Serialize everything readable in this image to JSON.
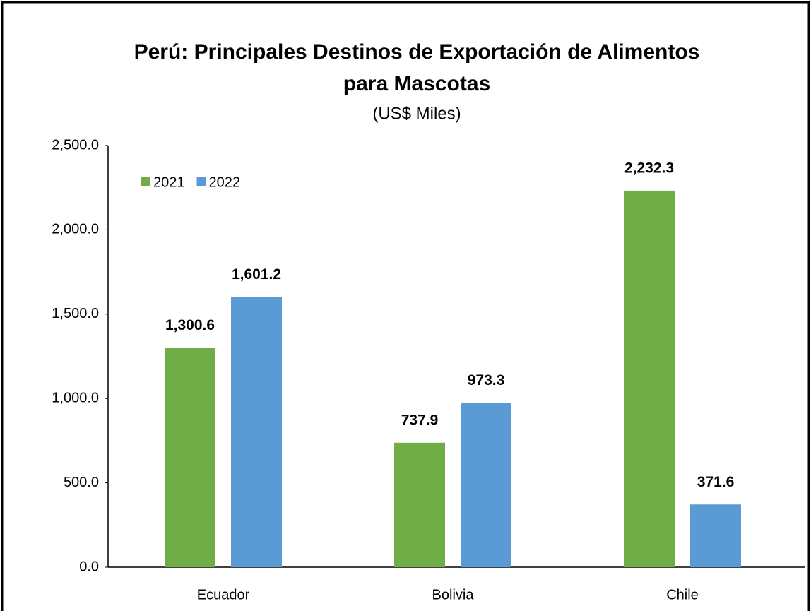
{
  "chart_data": {
    "type": "bar",
    "title": [
      "Perú: Principales Destinos de Exportación de Alimentos",
      "para Mascotas"
    ],
    "subtitle": "(US$ Miles)",
    "categories": [
      "Ecuador",
      "Bolivia",
      "Chile"
    ],
    "series": [
      {
        "name": "2021",
        "color": "#70ad47",
        "values": [
          1300.6,
          737.9,
          2232.3
        ],
        "value_labels": [
          "1,300.6",
          "737.9",
          "2,232.3"
        ]
      },
      {
        "name": "2022",
        "color": "#5b9bd5",
        "values": [
          1601.2,
          973.3,
          371.6
        ],
        "value_labels": [
          "1,601.2",
          "973.3",
          "371.6"
        ]
      }
    ],
    "ylim": [
      0,
      2500
    ],
    "yticks": [
      {
        "value": 0,
        "label": "0.0"
      },
      {
        "value": 500,
        "label": "500.0"
      },
      {
        "value": 1000,
        "label": "1,000.0"
      },
      {
        "value": 1500,
        "label": "1,500.0"
      },
      {
        "value": 2000,
        "label": "2,000.0"
      },
      {
        "value": 2500,
        "label": "2,500.0"
      }
    ],
    "grid": false,
    "legend": "top-left"
  }
}
